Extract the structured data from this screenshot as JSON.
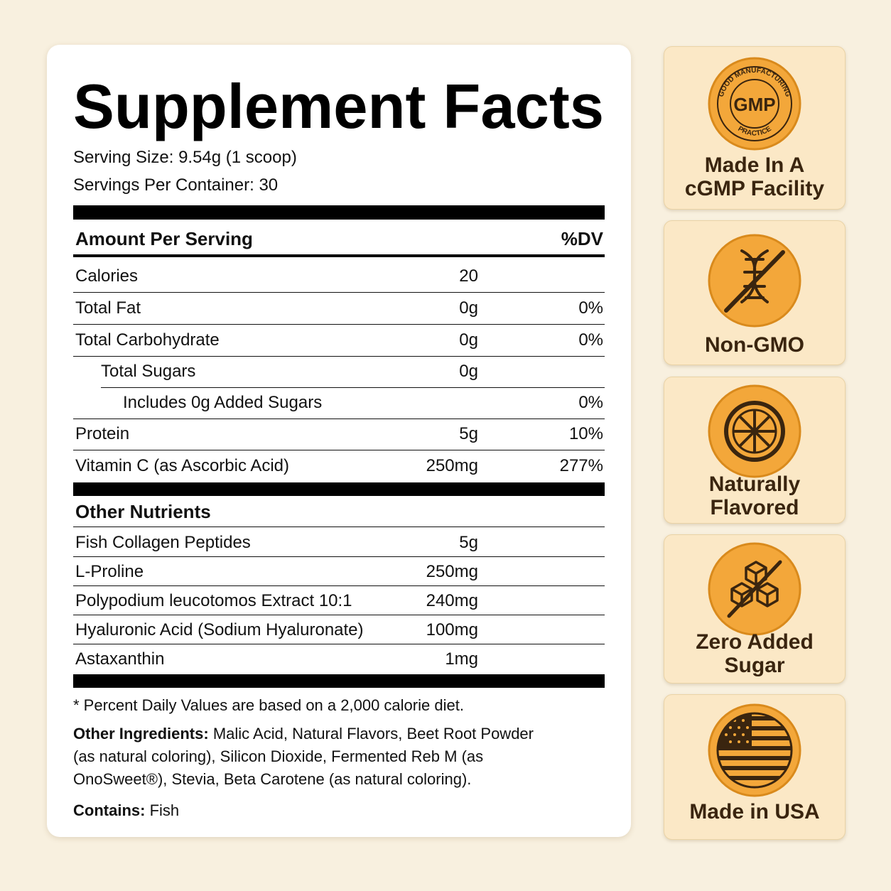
{
  "facts": {
    "title": "Supplement Facts",
    "serving_size": "Serving Size: 9.54g (1 scoop)",
    "servings_per_container": "Servings Per Container: 30",
    "header": {
      "amount": "Amount Per Serving",
      "dv": "%DV"
    },
    "nutrients": [
      {
        "name": "Calories",
        "amount": "20"
      },
      {
        "name": "Total Fat",
        "amount": "0g",
        "dv": "0%"
      },
      {
        "name": "Total Carbohydrate",
        "amount": "0g",
        "dv": "0%"
      },
      {
        "name": "Total Sugars",
        "amount": "0g"
      },
      {
        "name": "Includes 0g Added Sugars",
        "dv": "0%"
      },
      {
        "name": "Protein",
        "amount": "5g",
        "dv": "10%"
      },
      {
        "name": "Vitamin C (as Ascorbic Acid)",
        "amount": "250mg",
        "dv": "277%"
      }
    ],
    "other_heading": "Other Nutrients",
    "other": [
      {
        "name": "Fish Collagen Peptides",
        "amount": "5g"
      },
      {
        "name": "L-Proline",
        "amount": "250mg"
      },
      {
        "name": "Polypodium leucotomos Extract 10:1",
        "amount": "240mg"
      },
      {
        "name": "Hyaluronic Acid (Sodium Hyaluronate)",
        "amount": "100mg"
      },
      {
        "name": "Astaxanthin",
        "amount": "1mg"
      }
    ],
    "footnote": "* Percent Daily Values are based on a 2,000 calorie diet.",
    "ingredients": {
      "label": "Other Ingredients:",
      "text": "Malic Acid, Natural Flavors, Beet Root Powder (as natural coloring), Silicon Dioxide, Fermented Reb M (as OnoSweet®), Stevia, Beta Carotene (as natural coloring)."
    },
    "contains": {
      "label": "Contains:",
      "text": "Fish"
    }
  },
  "badges": [
    {
      "seal": {
        "center": "GMP",
        "top": "GOOD MANUFACTURING",
        "bottom": "PRACTICE"
      },
      "lines": [
        "Made In A",
        "cGMP Facility"
      ]
    },
    {
      "lines": [
        "Non-GMO"
      ]
    },
    {
      "lines": [
        "Naturally",
        "Flavored"
      ]
    },
    {
      "lines": [
        "Zero Added",
        "Sugar"
      ]
    },
    {
      "lines": [
        "Made in USA"
      ]
    }
  ]
}
